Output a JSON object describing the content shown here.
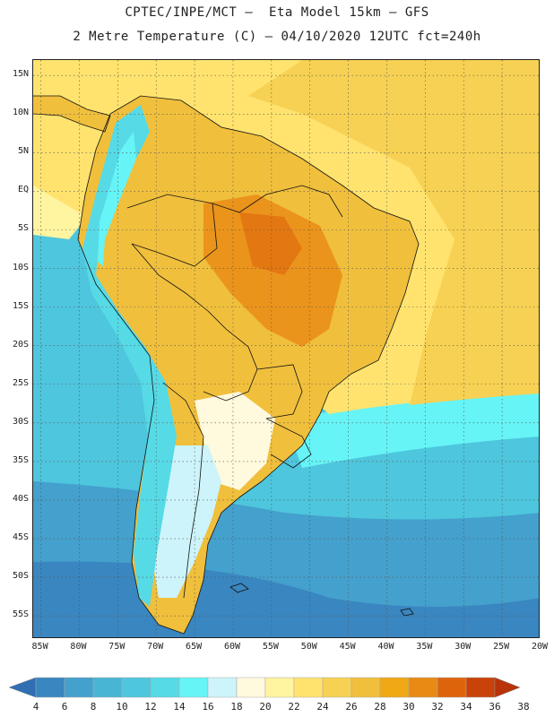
{
  "title": {
    "line1": "CPTEC/INPE/MCT –  Eta Model 15km – GFS",
    "line2": "2 Metre Temperature (C) – 04/10/2020 12UTC fct=240h"
  },
  "map": {
    "lat_range": [
      -58,
      17
    ],
    "lon_range": [
      -86,
      -20
    ],
    "lat_ticks": [
      {
        "value": 15,
        "label": "15N"
      },
      {
        "value": 10,
        "label": "10N"
      },
      {
        "value": 5,
        "label": "5N"
      },
      {
        "value": 0,
        "label": "EQ"
      },
      {
        "value": -5,
        "label": "5S"
      },
      {
        "value": -10,
        "label": "10S"
      },
      {
        "value": -15,
        "label": "15S"
      },
      {
        "value": -20,
        "label": "20S"
      },
      {
        "value": -25,
        "label": "25S"
      },
      {
        "value": -30,
        "label": "30S"
      },
      {
        "value": -35,
        "label": "35S"
      },
      {
        "value": -40,
        "label": "40S"
      },
      {
        "value": -45,
        "label": "45S"
      },
      {
        "value": -50,
        "label": "50S"
      },
      {
        "value": -55,
        "label": "55S"
      }
    ],
    "lon_ticks": [
      {
        "value": -85,
        "label": "85W"
      },
      {
        "value": -80,
        "label": "80W"
      },
      {
        "value": -75,
        "label": "75W"
      },
      {
        "value": -70,
        "label": "70W"
      },
      {
        "value": -65,
        "label": "65W"
      },
      {
        "value": -60,
        "label": "60W"
      },
      {
        "value": -55,
        "label": "55W"
      },
      {
        "value": -50,
        "label": "50W"
      },
      {
        "value": -45,
        "label": "45W"
      },
      {
        "value": -40,
        "label": "40W"
      },
      {
        "value": -35,
        "label": "35W"
      },
      {
        "value": -30,
        "label": "30W"
      },
      {
        "value": -25,
        "label": "25W"
      },
      {
        "value": -20,
        "label": "20W"
      }
    ],
    "gridlines": true
  },
  "colorbar": {
    "labels": [
      "4",
      "6",
      "8",
      "10",
      "12",
      "14",
      "16",
      "18",
      "20",
      "22",
      "24",
      "26",
      "28",
      "30",
      "32",
      "34",
      "36",
      "38"
    ],
    "colors": [
      "#2f6fb2",
      "#3a86c0",
      "#44a0cc",
      "#48b5d5",
      "#4ec6dd",
      "#56dae6",
      "#66f4f6",
      "#cdf4fa",
      "#fff9de",
      "#fff4a0",
      "#ffe36e",
      "#f7d153",
      "#f0bf3c",
      "#f0a814",
      "#e88a14",
      "#de640c",
      "#c8420a",
      "#b8330a"
    ]
  },
  "colors": {
    "deep_ocean_south": "#3a86c0",
    "mid_ocean": "#4ec6dd",
    "warm_ocean": "#66f4f6",
    "tropical_ocean": "#ffe36e",
    "land_hot": "#f0bf3c",
    "land_very_hot": "#e88a14",
    "andes_cold": "#56dae6"
  }
}
